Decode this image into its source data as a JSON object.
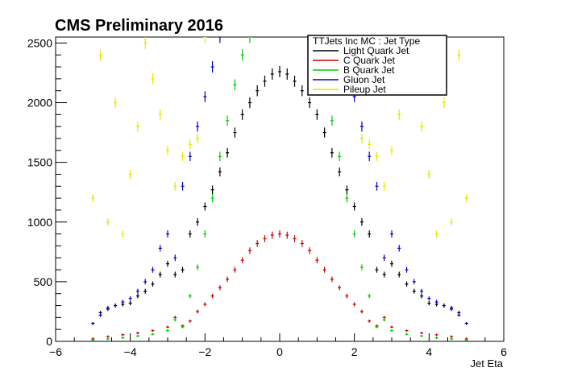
{
  "chart_data": {
    "type": "scatter",
    "title": "CMS Preliminary 2016",
    "xlabel": "Jet Eta",
    "ylabel": "",
    "xlim": [
      -6,
      6
    ],
    "ylim": [
      0,
      2550
    ],
    "xticks": [
      -6,
      -4,
      -2,
      0,
      2,
      4,
      6
    ],
    "yticks": [
      0,
      500,
      1000,
      1500,
      2000,
      2500
    ],
    "legend": {
      "title": "TTJets Inc MC : Jet Type",
      "placement": "top-right"
    },
    "series": [
      {
        "name": "Light Quark Jet",
        "color": "#000000",
        "x": [
          -5.0,
          -4.8,
          -4.6,
          -4.4,
          -4.2,
          -4.0,
          -3.8,
          -3.6,
          -3.4,
          -3.2,
          -3.0,
          -2.8,
          -2.6,
          -2.4,
          -2.2,
          -2.0,
          -1.8,
          -1.6,
          -1.4,
          -1.2,
          -1.0,
          -0.8,
          -0.6,
          -0.4,
          -0.2,
          0.0,
          0.2,
          0.4,
          0.6,
          0.8,
          1.0,
          1.2,
          1.4,
          1.6,
          1.8,
          2.0,
          2.2,
          2.4,
          2.6,
          2.8,
          3.0,
          3.2,
          3.4,
          3.6,
          3.8,
          4.0,
          4.2,
          4.4,
          4.6,
          4.8,
          5.0
        ],
        "values": [
          150,
          240,
          280,
          300,
          310,
          320,
          380,
          420,
          480,
          560,
          650,
          560,
          600,
          900,
          1000,
          1130,
          1270,
          1420,
          1580,
          1750,
          1900,
          2000,
          2100,
          2180,
          2240,
          2260,
          2240,
          2180,
          2100,
          2000,
          1900,
          1750,
          1580,
          1420,
          1270,
          1130,
          1000,
          900,
          600,
          560,
          650,
          560,
          480,
          420,
          380,
          320,
          310,
          300,
          280,
          240,
          150
        ]
      },
      {
        "name": "C Quark Jet",
        "color": "#cc0000",
        "x": [
          -5.0,
          -4.6,
          -4.2,
          -3.8,
          -3.4,
          -3.0,
          -2.8,
          -2.6,
          -2.4,
          -2.2,
          -2.0,
          -1.8,
          -1.6,
          -1.4,
          -1.2,
          -1.0,
          -0.8,
          -0.6,
          -0.4,
          -0.2,
          0.0,
          0.2,
          0.4,
          0.6,
          0.8,
          1.0,
          1.2,
          1.4,
          1.6,
          1.8,
          2.0,
          2.2,
          2.4,
          2.6,
          2.8,
          3.0,
          3.4,
          3.8,
          4.2,
          4.6,
          5.0
        ],
        "values": [
          20,
          40,
          55,
          70,
          90,
          120,
          200,
          130,
          170,
          250,
          310,
          380,
          450,
          520,
          600,
          680,
          760,
          820,
          860,
          890,
          900,
          890,
          860,
          820,
          760,
          680,
          600,
          520,
          450,
          380,
          310,
          250,
          170,
          130,
          200,
          120,
          90,
          70,
          55,
          40,
          20
        ]
      },
      {
        "name": "B Quark Jet",
        "color": "#00cc00",
        "x": [
          -5.0,
          -4.6,
          -4.2,
          -3.8,
          -3.4,
          -3.0,
          -2.8,
          -2.6,
          -2.4,
          -2.2,
          -2.0,
          -1.8,
          -1.6,
          -1.4,
          -1.2,
          -1.0,
          -0.8,
          0.8,
          1.0,
          1.2,
          1.4,
          1.6,
          1.8,
          2.0,
          2.2,
          2.4,
          2.6,
          2.8,
          3.0,
          3.4,
          3.8,
          4.2,
          4.6,
          5.0
        ],
        "values": [
          10,
          20,
          30,
          45,
          60,
          90,
          180,
          120,
          380,
          620,
          900,
          1200,
          1550,
          1850,
          2150,
          2400,
          2550,
          2550,
          2400,
          2150,
          1850,
          1550,
          1200,
          900,
          620,
          380,
          120,
          180,
          90,
          60,
          45,
          30,
          20,
          10
        ]
      },
      {
        "name": "Gluon Jet",
        "color": "#0000cc",
        "x": [
          -5.0,
          -4.8,
          -4.6,
          -4.4,
          -4.2,
          -4.0,
          -3.8,
          -3.6,
          -3.4,
          -3.2,
          -3.0,
          -2.8,
          -2.6,
          -2.4,
          -2.2,
          -2.0,
          -1.8,
          -1.6,
          -1.4,
          1.4,
          1.6,
          1.8,
          2.0,
          2.2,
          2.4,
          2.6,
          2.8,
          3.0,
          3.2,
          3.4,
          3.6,
          3.8,
          4.0,
          4.2,
          4.4,
          4.6,
          4.8,
          5.0
        ],
        "values": [
          150,
          220,
          270,
          300,
          330,
          360,
          420,
          500,
          600,
          780,
          900,
          700,
          1300,
          1550,
          1800,
          2050,
          2300,
          2550,
          2700,
          2700,
          2550,
          2300,
          2050,
          1800,
          1550,
          1300,
          700,
          900,
          780,
          600,
          500,
          420,
          360,
          330,
          300,
          270,
          220,
          150
        ]
      },
      {
        "name": "Pileup Jet",
        "color": "#e6e600",
        "x": [
          -5.0,
          -4.8,
          -4.6,
          -4.4,
          -4.2,
          -4.0,
          -3.8,
          -3.6,
          -3.4,
          -3.2,
          -3.0,
          -2.8,
          -2.6,
          -2.4,
          -2.2,
          -2.0,
          2.0,
          2.2,
          2.4,
          2.6,
          2.8,
          3.0,
          3.2,
          3.4,
          3.6,
          3.8,
          4.0,
          4.2,
          4.4,
          4.6,
          4.8,
          5.0
        ],
        "values": [
          1200,
          2400,
          1000,
          2000,
          900,
          1400,
          1800,
          2500,
          2200,
          1900,
          1600,
          1300,
          1550,
          1650,
          1700,
          2550,
          2550,
          1700,
          1650,
          1550,
          1300,
          1600,
          1900,
          2200,
          2500,
          1800,
          1400,
          900,
          2000,
          1000,
          2400,
          1200
        ]
      }
    ]
  }
}
